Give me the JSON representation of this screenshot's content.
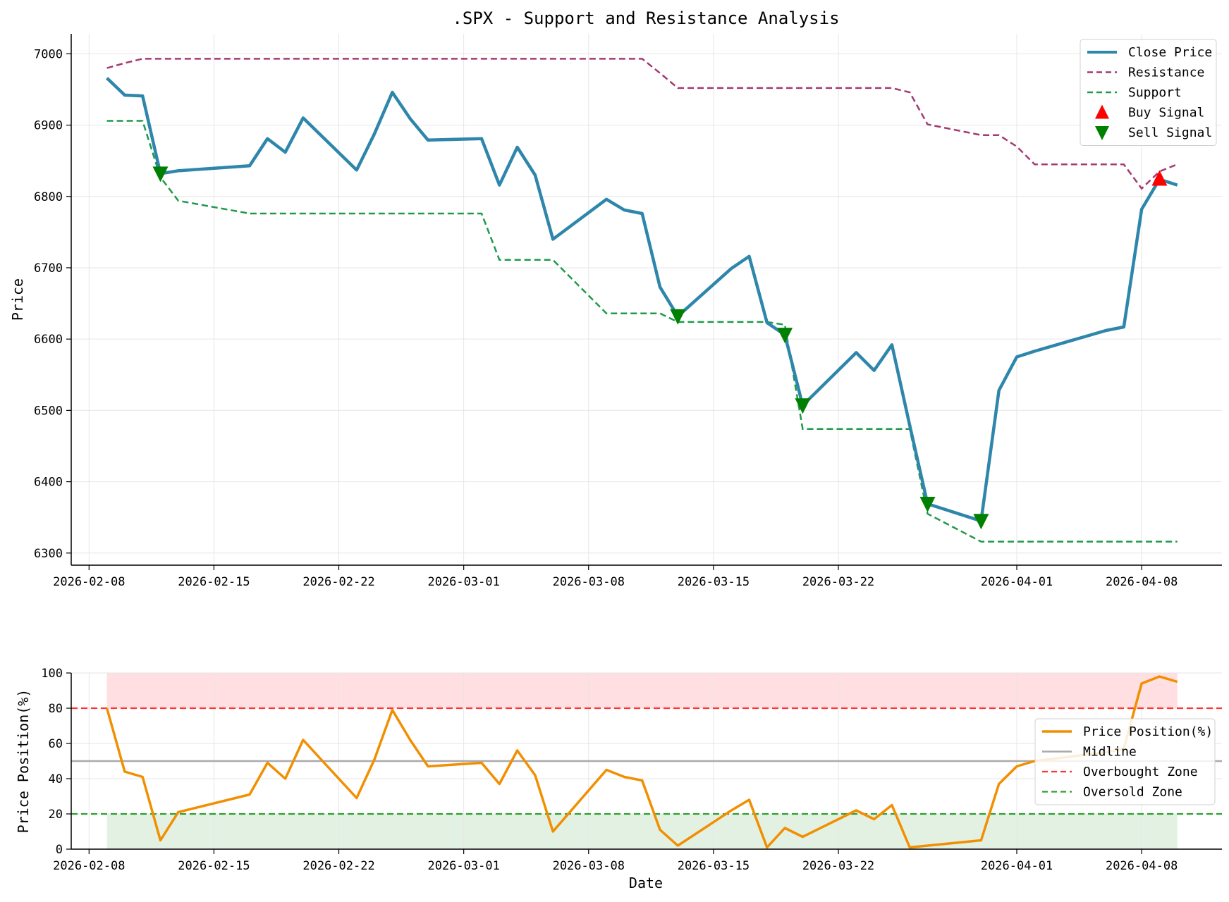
{
  "title": ".SPX - Support and Resistance Analysis",
  "colors": {
    "close": "#2e86ab",
    "resistance": "#a23b72",
    "support": "#1e9a4a",
    "buy": "#ff0000",
    "sell": "#008000",
    "position": "#f18f01",
    "midline": "#aaaaaa",
    "overbought": "#ff3333",
    "oversold": "#2ca02c",
    "overbought_fill": "#ffdfe1",
    "oversold_fill": "#e3f1e3"
  },
  "chart_data": [
    {
      "type": "line",
      "ylabel": "Price",
      "xlabel": "",
      "ylim": [
        6283,
        7028
      ],
      "xlim": [
        "2026-02-07T00:00",
        "2026-04-12T12:00"
      ],
      "yticks": [
        6300,
        6400,
        6500,
        6600,
        6700,
        6800,
        6900,
        7000
      ],
      "xticks": [
        "2026-02-08",
        "2026-02-15",
        "2026-02-22",
        "2026-03-01",
        "2026-03-08",
        "2026-03-15",
        "2026-03-22",
        "2026-04-01",
        "2026-04-08"
      ],
      "grid": true,
      "legend": {
        "placement": "upper-right",
        "entries": [
          "Close Price",
          "Resistance",
          "Support",
          "Buy Signal",
          "Sell Signal"
        ]
      },
      "dates": [
        "2026-02-09",
        "2026-02-10",
        "2026-02-11",
        "2026-02-12",
        "2026-02-13",
        "2026-02-17",
        "2026-02-18",
        "2026-02-19",
        "2026-02-20",
        "2026-02-23",
        "2026-02-24",
        "2026-02-25",
        "2026-02-26",
        "2026-02-27",
        "2026-03-02",
        "2026-03-03",
        "2026-03-04",
        "2026-03-05",
        "2026-03-06",
        "2026-03-09",
        "2026-03-10",
        "2026-03-11",
        "2026-03-12",
        "2026-03-13",
        "2026-03-16",
        "2026-03-17",
        "2026-03-18",
        "2026-03-19",
        "2026-03-20",
        "2026-03-23",
        "2026-03-24",
        "2026-03-25",
        "2026-03-26",
        "2026-03-27",
        "2026-03-30",
        "2026-03-31",
        "2026-04-01",
        "2026-04-02",
        "2026-04-06",
        "2026-04-07",
        "2026-04-08",
        "2026-04-09",
        "2026-04-10"
      ],
      "series": [
        {
          "name": "Close Price",
          "style": "solid",
          "values": [
            6966,
            6942,
            6941,
            6832,
            6836,
            6843,
            6881,
            6862,
            6910,
            6837,
            6888,
            6946,
            6909,
            6879,
            6881,
            6816,
            6869,
            6830,
            6740,
            6796,
            6781,
            6776,
            6673,
            6632,
            6699,
            6716,
            6623,
            6606,
            6507,
            6581,
            6556,
            6592,
            6479,
            6369,
            6345,
            6528,
            6575,
            6583,
            6612,
            6617,
            6782,
            6824,
            6816
          ]
        },
        {
          "name": "Resistance",
          "style": "dashed",
          "values": [
            6980,
            6987,
            6993,
            6993,
            6993,
            6993,
            6993,
            6993,
            6993,
            6993,
            6993,
            6993,
            6993,
            6993,
            6993,
            6993,
            6993,
            6993,
            6993,
            6993,
            6993,
            6993,
            6973,
            6952,
            6952,
            6952,
            6952,
            6952,
            6952,
            6952,
            6952,
            6952,
            6946,
            6901,
            6886,
            6886,
            6870,
            6845,
            6845,
            6845,
            6811,
            6835,
            6845
          ]
        },
        {
          "name": "Support",
          "style": "dashed",
          "values": [
            6906,
            6906,
            6906,
            6827,
            6794,
            6776,
            6776,
            6776,
            6776,
            6776,
            6776,
            6776,
            6776,
            6776,
            6776,
            6711,
            6711,
            6711,
            6711,
            6636,
            6636,
            6636,
            6636,
            6624,
            6624,
            6624,
            6624,
            6620,
            6474,
            6474,
            6474,
            6474,
            6474,
            6355,
            6316,
            6316,
            6316,
            6316,
            6316,
            6316,
            6316,
            6316,
            6316
          ]
        }
      ],
      "buy_signals": [
        {
          "x": "2026-04-09",
          "y": 6825
        }
      ],
      "sell_signals": [
        {
          "x": "2026-02-12",
          "y": 6832
        },
        {
          "x": "2026-03-13",
          "y": 6632
        },
        {
          "x": "2026-03-19",
          "y": 6606
        },
        {
          "x": "2026-03-20",
          "y": 6507
        },
        {
          "x": "2026-03-27",
          "y": 6369
        },
        {
          "x": "2026-03-30",
          "y": 6345
        }
      ]
    },
    {
      "type": "line",
      "ylabel": "Price Position(%)",
      "xlabel": "Date",
      "ylim": [
        0,
        100
      ],
      "xlim": [
        "2026-02-07T00:00",
        "2026-04-12T12:00"
      ],
      "yticks": [
        0,
        20,
        40,
        60,
        80,
        100
      ],
      "xticks": [
        "2026-02-08",
        "2026-02-15",
        "2026-02-22",
        "2026-03-01",
        "2026-03-08",
        "2026-03-15",
        "2026-03-22",
        "2026-04-01",
        "2026-04-08"
      ],
      "grid": true,
      "legend": {
        "placement": "right",
        "entries": [
          "Price Position(%)",
          "Midline",
          "Overbought Zone",
          "Oversold Zone"
        ]
      },
      "dates": [
        "2026-02-09",
        "2026-02-10",
        "2026-02-11",
        "2026-02-12",
        "2026-02-13",
        "2026-02-17",
        "2026-02-18",
        "2026-02-19",
        "2026-02-20",
        "2026-02-23",
        "2026-02-24",
        "2026-02-25",
        "2026-02-26",
        "2026-02-27",
        "2026-03-02",
        "2026-03-03",
        "2026-03-04",
        "2026-03-05",
        "2026-03-06",
        "2026-03-09",
        "2026-03-10",
        "2026-03-11",
        "2026-03-12",
        "2026-03-13",
        "2026-03-16",
        "2026-03-17",
        "2026-03-18",
        "2026-03-19",
        "2026-03-20",
        "2026-03-23",
        "2026-03-24",
        "2026-03-25",
        "2026-03-26",
        "2026-03-27",
        "2026-03-30",
        "2026-03-31",
        "2026-04-01",
        "2026-04-02",
        "2026-04-06",
        "2026-04-07",
        "2026-04-08",
        "2026-04-09",
        "2026-04-10"
      ],
      "series": [
        {
          "name": "Price Position(%)",
          "values": [
            80,
            44,
            41,
            5,
            21,
            31,
            49,
            40,
            62,
            29,
            51,
            79,
            62,
            47,
            49,
            37,
            56,
            42,
            10,
            45,
            41,
            39,
            11,
            2,
            22,
            28,
            1,
            12,
            7,
            22,
            17,
            25,
            1,
            2,
            5,
            37,
            47,
            50,
            55,
            57,
            94,
            98,
            95
          ]
        }
      ],
      "midline": 50,
      "overbought": 80,
      "oversold": 20,
      "zone_span": [
        "2026-02-09",
        "2026-04-10"
      ]
    }
  ]
}
